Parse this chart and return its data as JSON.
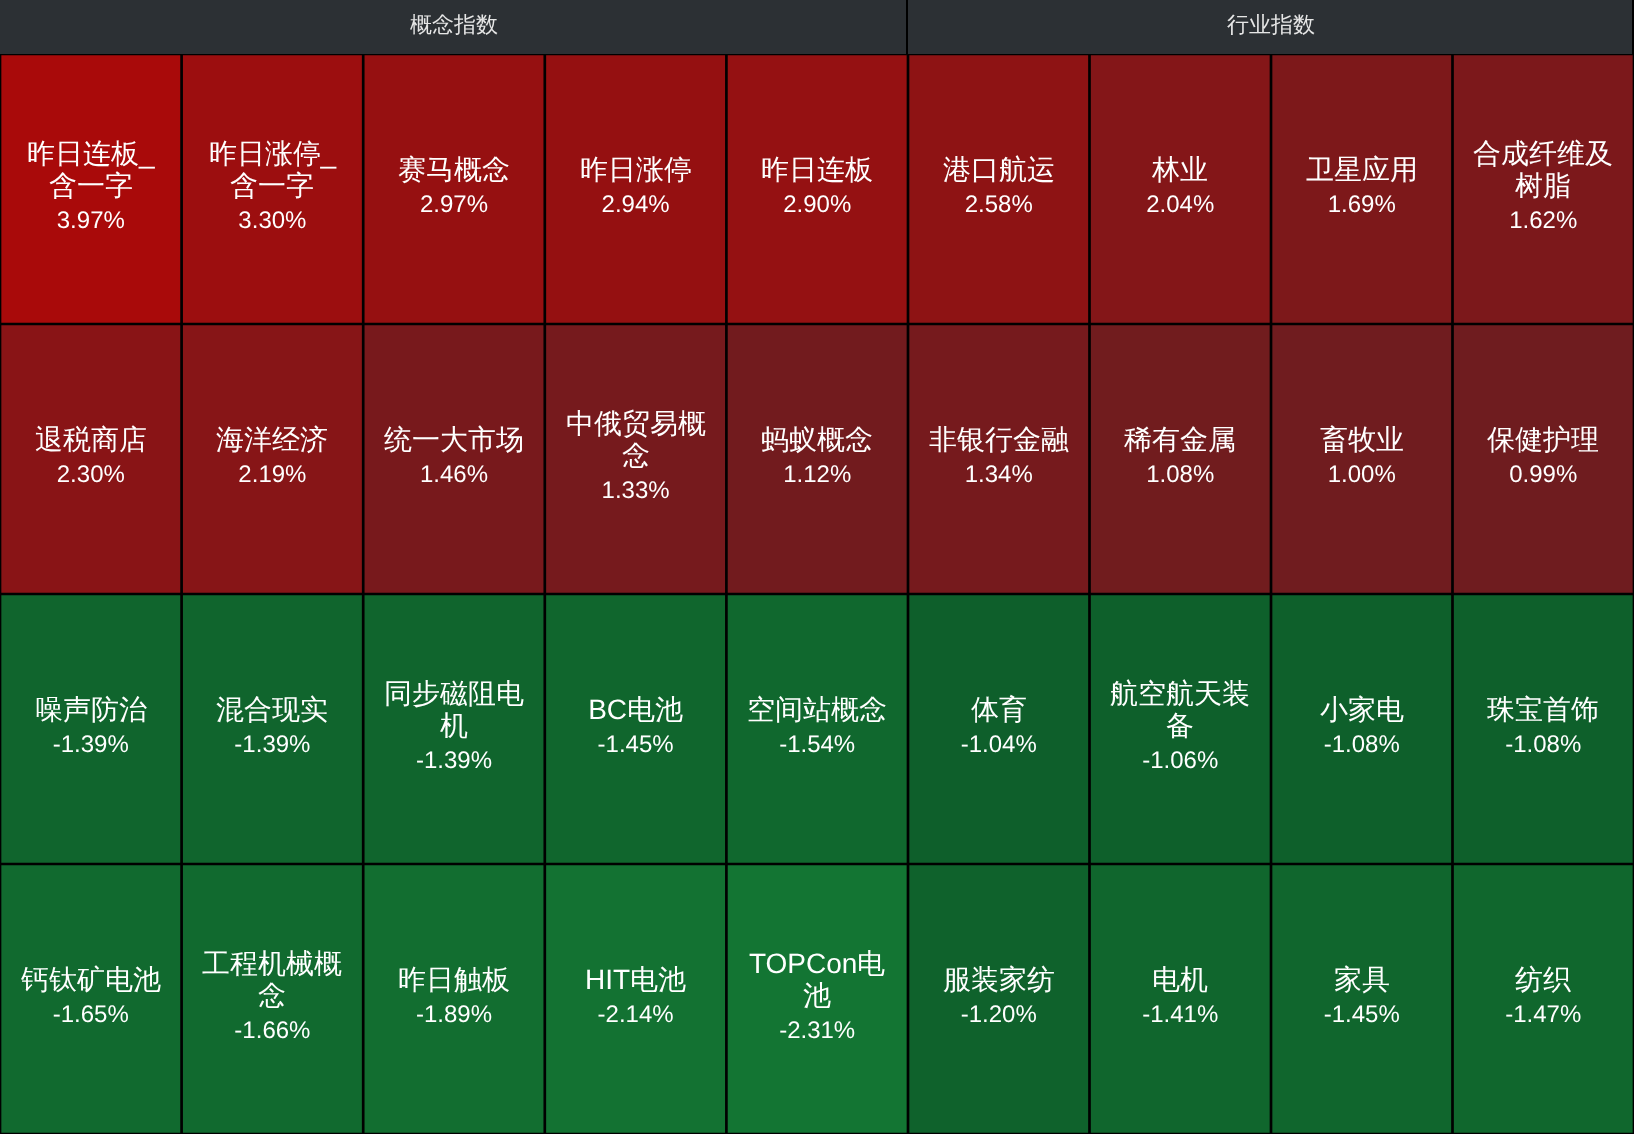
{
  "chart_data": [
    {
      "type": "other",
      "title": "概念指数",
      "categories": [
        "昨日连板_含一字",
        "昨日涨停_含一字",
        "赛马概念",
        "昨日涨停",
        "昨日连板",
        "退税商店",
        "海洋经济",
        "统一大市场",
        "中俄贸易概念",
        "蚂蚁概念",
        "噪声防治",
        "混合现实",
        "同步磁阻电机",
        "BC电池",
        "空间站概念",
        "钙钛矿电池",
        "工程机械概念",
        "昨日触板",
        "HIT电池",
        "TOPCon电池"
      ],
      "values": [
        3.97,
        3.3,
        2.97,
        2.94,
        2.9,
        2.3,
        2.19,
        1.46,
        1.33,
        1.12,
        -1.39,
        -1.39,
        -1.39,
        -1.45,
        -1.54,
        -1.65,
        -1.66,
        -1.89,
        -2.14,
        -2.31
      ],
      "value_labels": [
        "3.97%",
        "3.30%",
        "2.97%",
        "2.94%",
        "2.90%",
        "2.30%",
        "2.19%",
        "1.46%",
        "1.33%",
        "1.12%",
        "-1.39%",
        "-1.39%",
        "-1.39%",
        "-1.45%",
        "-1.54%",
        "-1.65%",
        "-1.66%",
        "-1.89%",
        "-2.14%",
        "-2.31%"
      ]
    },
    {
      "type": "other",
      "title": "行业指数",
      "categories": [
        "港口航运",
        "林业",
        "卫星应用",
        "合成纤维及树脂",
        "非银行金融",
        "稀有金属",
        "畜牧业",
        "保健护理",
        "体育",
        "航空航天装备",
        "小家电",
        "珠宝首饰",
        "服装家纺",
        "电机",
        "家具",
        "纺织"
      ],
      "values": [
        2.58,
        2.04,
        1.69,
        1.62,
        1.34,
        1.08,
        1.0,
        0.99,
        -1.04,
        -1.06,
        -1.08,
        -1.08,
        -1.2,
        -1.41,
        -1.45,
        -1.47
      ],
      "value_labels": [
        "2.58%",
        "2.04%",
        "1.69%",
        "1.62%",
        "1.34%",
        "1.08%",
        "1.00%",
        "0.99%",
        "-1.04%",
        "-1.06%",
        "-1.08%",
        "-1.08%",
        "-1.20%",
        "-1.41%",
        "-1.45%",
        "-1.47%"
      ]
    }
  ]
}
